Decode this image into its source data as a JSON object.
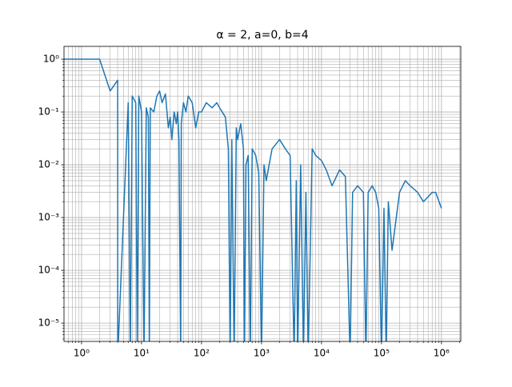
{
  "chart_data": {
    "type": "line",
    "title": "α = 2, a=0, b=4",
    "x": [
      0.5,
      1,
      2,
      3,
      4,
      4.01,
      6,
      6.5,
      7,
      8,
      8.5,
      9,
      10,
      11,
      12,
      13,
      13.5,
      14,
      16,
      18,
      20,
      22,
      25,
      28,
      30,
      32,
      35,
      38,
      40,
      42,
      45,
      46,
      50,
      55,
      60,
      70,
      80,
      90,
      100,
      120,
      150,
      180,
      200,
      250,
      280,
      300,
      320,
      350,
      380,
      400,
      450,
      500,
      520,
      550,
      600,
      650,
      700,
      800,
      900,
      1000,
      1100,
      1200,
      1500,
      2000,
      2500,
      3000,
      3500,
      3800,
      4000,
      4500,
      5000,
      5500,
      6000,
      7000,
      8000,
      10000,
      12000,
      15000,
      20000,
      25000,
      30000,
      33000,
      40000,
      50000,
      55000,
      60000,
      70000,
      80000,
      90000,
      100000,
      110000,
      120000,
      130000,
      150000,
      200000,
      250000,
      300000,
      400000,
      500000,
      700000,
      800000,
      1000000
    ],
    "values": [
      1,
      1,
      1,
      0.25,
      0.4,
      0,
      0.15,
      0,
      0.2,
      0.15,
      0,
      0.2,
      0.1,
      0,
      0.12,
      0.08,
      0,
      0.12,
      0.1,
      0.2,
      0.25,
      0.15,
      0.22,
      0.05,
      0.08,
      0.03,
      0.1,
      0.06,
      0.1,
      0.03,
      0,
      0.06,
      0.15,
      0.1,
      0.2,
      0.15,
      0.05,
      0.1,
      0.1,
      0.15,
      0.12,
      0.15,
      0.12,
      0.08,
      0.02,
      0,
      0.03,
      0,
      0.05,
      0.03,
      0.06,
      0.02,
      0,
      0.01,
      0.015,
      0,
      0.02,
      0.015,
      0.007,
      0,
      0.01,
      0.005,
      0.02,
      0.03,
      0.02,
      0.015,
      0,
      0.005,
      0,
      0.01,
      0,
      0.003,
      0,
      0.02,
      0.015,
      0.012,
      0.008,
      0.004,
      0.008,
      0.006,
      0,
      0.003,
      0.004,
      0.003,
      0,
      0.003,
      0.004,
      0.003,
      0.0015,
      0,
      0.0015,
      0,
      0.002,
      0.00024,
      0.003,
      0.005,
      0.004,
      0.003,
      0.002,
      0.003,
      0.003,
      0.0015
    ],
    "color": "#1f77b4",
    "xscale": "log",
    "yscale": "log",
    "grid": "both",
    "xlim": [
      0.51,
      2100000
    ],
    "ylim": [
      4.5e-06,
      1.75
    ],
    "xticks": [
      {
        "value": 1,
        "label": "10⁰"
      },
      {
        "value": 10,
        "label": "10¹"
      },
      {
        "value": 100,
        "label": "10²"
      },
      {
        "value": 1000,
        "label": "10³"
      },
      {
        "value": 10000,
        "label": "10⁴"
      },
      {
        "value": 100000,
        "label": "10⁵"
      },
      {
        "value": 1000000,
        "label": "10⁶"
      }
    ],
    "yticks": [
      {
        "value": 1e-05,
        "label": "10⁻⁵"
      },
      {
        "value": 0.0001,
        "label": "10⁻⁴"
      },
      {
        "value": 0.001,
        "label": "10⁻³"
      },
      {
        "value": 0.01,
        "label": "10⁻²"
      },
      {
        "value": 0.1,
        "label": "10⁻¹"
      },
      {
        "value": 1,
        "label": "10⁰"
      }
    ]
  }
}
